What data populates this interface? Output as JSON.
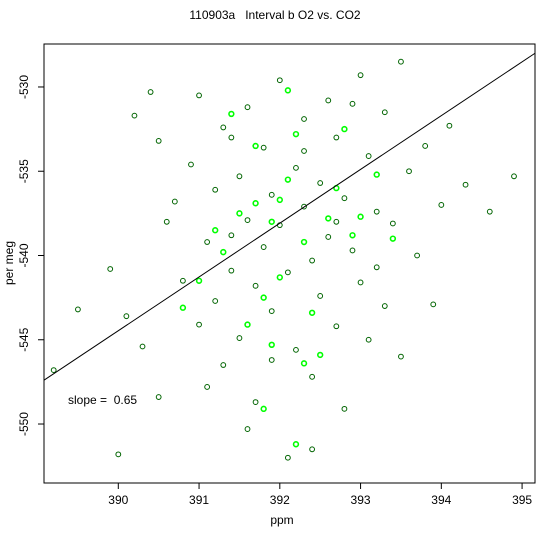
{
  "chart_data": {
    "type": "scatter",
    "title": "110903a   Interval b O2 vs. CO2",
    "x_label": "ppm",
    "y_label": "per meg",
    "annotation": "slope =  0.65",
    "xlim": [
      389.08,
      395.16
    ],
    "ylim": [
      -553.5,
      -527.45
    ],
    "xticks": [
      390,
      391,
      392,
      393,
      394,
      395
    ],
    "yticks": [
      -530,
      -535,
      -540,
      -545,
      -550
    ],
    "trend_line": {
      "color": "#000000",
      "x": [
        389.08,
        395.16
      ],
      "y": [
        -547.4,
        -528.0
      ]
    },
    "series": [
      {
        "color": "#006400",
        "x": [
          389.2,
          389.5,
          389.9,
          390.0,
          390.1,
          390.2,
          390.4,
          390.5,
          390.5,
          390.6,
          390.7,
          390.8,
          390.9,
          391.0,
          391.0,
          391.1,
          391.2,
          391.2,
          391.3,
          391.3,
          391.4,
          391.4,
          391.5,
          391.5,
          391.6,
          391.6,
          391.7,
          391.7,
          391.8,
          391.8,
          391.9,
          391.9,
          392.0,
          392.0,
          392.1,
          392.1,
          392.2,
          392.2,
          392.3,
          392.3,
          392.4,
          392.4,
          392.5,
          392.5,
          392.6,
          392.6,
          392.7,
          392.7,
          392.8,
          392.8,
          392.9,
          393.0,
          393.0,
          393.1,
          393.1,
          393.2,
          393.3,
          393.3,
          393.4,
          393.5,
          393.5,
          393.6,
          393.7,
          393.8,
          393.9,
          394.0,
          394.1,
          394.3,
          394.6,
          394.9,
          391.6,
          392.4,
          392.3,
          391.9,
          392.7,
          391.4,
          390.3,
          391.1,
          392.9,
          393.2
        ],
        "values": [
          -546.8,
          -543.2,
          -540.8,
          -551.8,
          -543.6,
          -531.7,
          -530.3,
          -533.2,
          -548.4,
          -538.0,
          -536.8,
          -541.5,
          -534.6,
          -544.1,
          -530.5,
          -539.2,
          -542.7,
          -536.1,
          -532.4,
          -546.5,
          -538.8,
          -540.9,
          -535.3,
          -544.9,
          -531.2,
          -537.9,
          -541.8,
          -548.7,
          -533.6,
          -539.5,
          -536.4,
          -543.3,
          -529.6,
          -538.2,
          -552.0,
          -541.0,
          -534.8,
          -545.6,
          -537.1,
          -531.9,
          -540.3,
          -547.2,
          -535.7,
          -542.4,
          -530.8,
          -538.9,
          -544.2,
          -533.0,
          -536.6,
          -549.1,
          -539.7,
          -529.3,
          -541.6,
          -534.1,
          -545.0,
          -537.4,
          -531.5,
          -543.0,
          -538.1,
          -528.5,
          -546.0,
          -535.0,
          -540.0,
          -533.5,
          -542.9,
          -537.0,
          -532.3,
          -535.8,
          -537.4,
          -535.3,
          -550.3,
          -551.5,
          -533.8,
          -546.2,
          -538.0,
          -533.0,
          -545.4,
          -547.8,
          -531.0,
          -540.7
        ]
      },
      {
        "color": "#00ff00",
        "x": [
          391.8,
          392.2,
          391.5,
          391.7,
          391.9,
          392.1,
          392.3,
          392.0,
          391.6,
          392.5,
          392.8,
          392.1,
          392.6,
          391.3,
          391.0,
          392.4,
          391.9,
          392.2,
          392.7,
          393.0,
          393.2,
          391.4,
          391.8,
          392.3,
          391.2,
          392.9,
          391.7,
          392.0,
          393.4,
          390.8
        ],
        "values": [
          -549.1,
          -551.2,
          -537.5,
          -536.9,
          -538.0,
          -535.5,
          -539.2,
          -541.3,
          -544.1,
          -545.9,
          -532.5,
          -530.2,
          -537.8,
          -539.8,
          -541.5,
          -543.4,
          -545.3,
          -532.8,
          -536.0,
          -537.7,
          -535.2,
          -531.6,
          -542.5,
          -546.4,
          -538.5,
          -538.8,
          -533.5,
          -536.7,
          -539.0,
          -543.1
        ]
      }
    ]
  }
}
